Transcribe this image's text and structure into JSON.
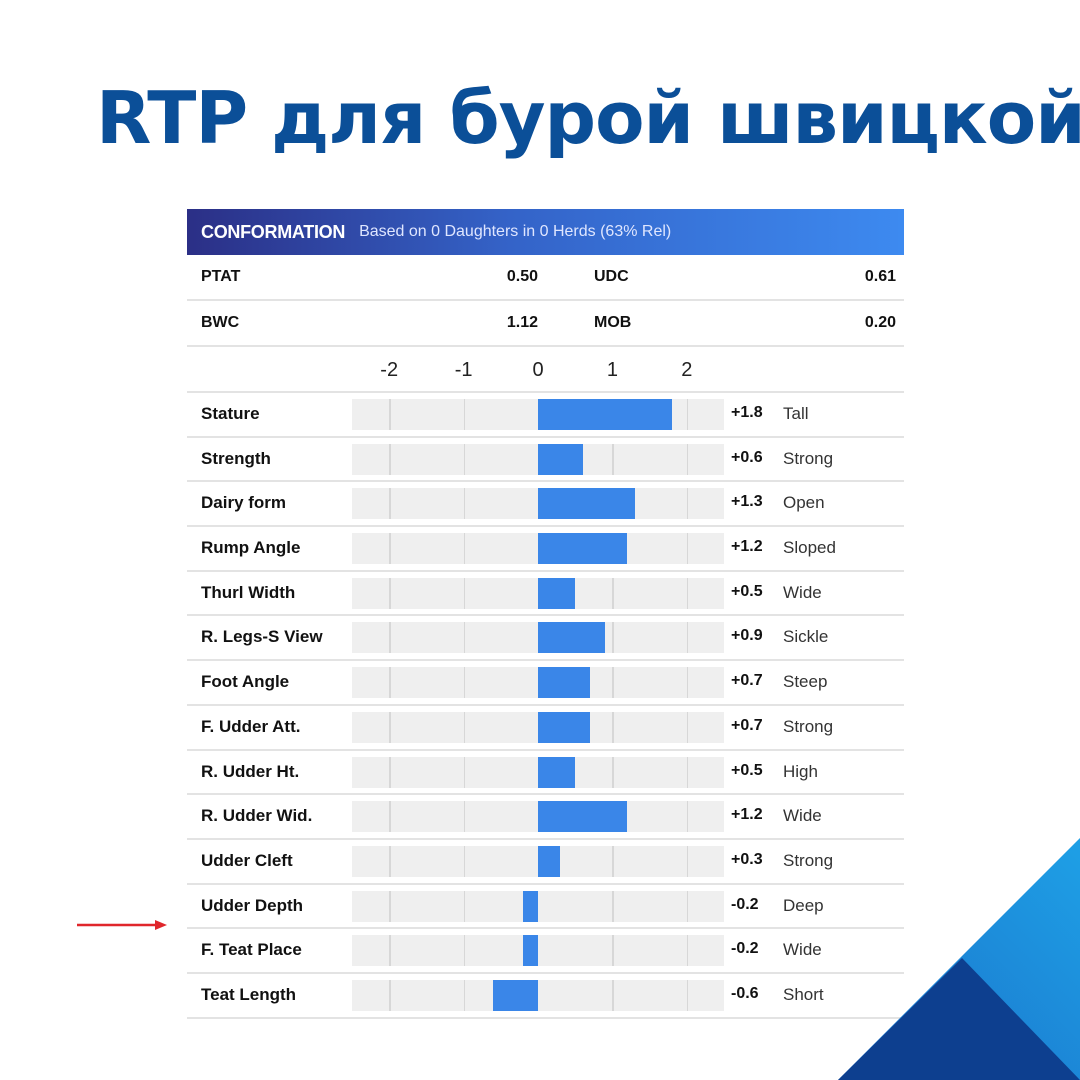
{
  "title": "RTP для бурой швицкой",
  "colors": {
    "title": "#0b4f98",
    "bar": "#3a86e8",
    "arrow": "#e0262b"
  },
  "chart_data": {
    "type": "bar",
    "orientation": "horizontal",
    "header": {
      "title": "CONFORMATION",
      "subtitle": "Based on 0 Daughters in 0 Herds (63% Rel)"
    },
    "summary": [
      {
        "label": "PTAT",
        "value": "0.50",
        "label2": "UDC",
        "value2": "0.61"
      },
      {
        "label": "BWC",
        "value": "1.12",
        "label2": "MOB",
        "value2": "0.20"
      }
    ],
    "xlim": [
      -2.5,
      2.5
    ],
    "ticks": [
      {
        "v": -2,
        "label": "-2"
      },
      {
        "v": -1,
        "label": "-1"
      },
      {
        "v": 0,
        "label": "0"
      },
      {
        "v": 1,
        "label": "1"
      },
      {
        "v": 2,
        "label": "2"
      }
    ],
    "rows": [
      {
        "trait": "Stature",
        "value": 1.8,
        "display": "+1.8",
        "desc": "Tall"
      },
      {
        "trait": "Strength",
        "value": 0.6,
        "display": "+0.6",
        "desc": "Strong"
      },
      {
        "trait": "Dairy form",
        "value": 1.3,
        "display": "+1.3",
        "desc": "Open"
      },
      {
        "trait": "Rump Angle",
        "value": 1.2,
        "display": "+1.2",
        "desc": "Sloped"
      },
      {
        "trait": "Thurl Width",
        "value": 0.5,
        "display": "+0.5",
        "desc": "Wide"
      },
      {
        "trait": "R. Legs-S View",
        "value": 0.9,
        "display": "+0.9",
        "desc": "Sickle"
      },
      {
        "trait": "Foot Angle",
        "value": 0.7,
        "display": "+0.7",
        "desc": "Steep"
      },
      {
        "trait": "F. Udder Att.",
        "value": 0.7,
        "display": "+0.7",
        "desc": "Strong"
      },
      {
        "trait": "R. Udder Ht.",
        "value": 0.5,
        "display": "+0.5",
        "desc": "High"
      },
      {
        "trait": "R. Udder Wid.",
        "value": 1.2,
        "display": "+1.2",
        "desc": "Wide"
      },
      {
        "trait": "Udder Cleft",
        "value": 0.3,
        "display": "+0.3",
        "desc": "Strong"
      },
      {
        "trait": "Udder Depth",
        "value": -0.2,
        "display": "-0.2",
        "desc": "Deep"
      },
      {
        "trait": "F. Teat Place",
        "value": -0.2,
        "display": "-0.2",
        "desc": "Wide"
      },
      {
        "trait": "Teat Length",
        "value": -0.6,
        "display": "-0.6",
        "desc": "Short"
      }
    ],
    "highlight": {
      "trait": "Udder Depth",
      "marker": "red-arrow-icon"
    }
  }
}
